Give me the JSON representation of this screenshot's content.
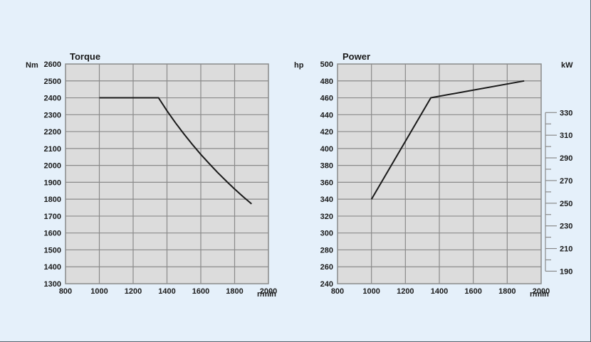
{
  "colors": {
    "background": "#e5f0fa",
    "plot_area": "#dcdcdc",
    "grid": "#8a8a8a",
    "line": "#1a1a1a",
    "text": "#1a1a1a"
  },
  "chart_data": [
    {
      "type": "line",
      "title": "Torque",
      "ylabel": "Nm",
      "xlabel": "r/min",
      "xlim": [
        800,
        2000
      ],
      "ylim": [
        1300,
        2600
      ],
      "xticks": [
        "800",
        "1000",
        "1200",
        "1400",
        "1600",
        "1800",
        "2000"
      ],
      "yticks": [
        "1300",
        "1400",
        "1500",
        "1600",
        "1700",
        "1800",
        "1900",
        "2000",
        "2100",
        "2200",
        "2300",
        "2400",
        "2500",
        "2600"
      ],
      "grid": true,
      "series": [
        {
          "x": [
            1000,
            1350,
            1400,
            1450,
            1500,
            1550,
            1600,
            1650,
            1700,
            1750,
            1800,
            1850,
            1900
          ],
          "y": [
            2400,
            2400,
            2323,
            2252,
            2186,
            2124,
            2065,
            2010,
            1957,
            1908,
            1860,
            1815,
            1772
          ]
        }
      ]
    },
    {
      "type": "line",
      "title": "Power",
      "ylabel": "hp",
      "xlabel": "r/min",
      "xlim": [
        800,
        2000
      ],
      "ylim": [
        240,
        500
      ],
      "xticks": [
        "800",
        "1000",
        "1200",
        "1400",
        "1600",
        "1800",
        "2000"
      ],
      "yticks": [
        "240",
        "260",
        "280",
        "300",
        "320",
        "340",
        "360",
        "380",
        "400",
        "420",
        "440",
        "460",
        "480",
        "500"
      ],
      "grid": true,
      "secondary_axis": {
        "label": "kW",
        "ticks": [
          "190",
          "210",
          "230",
          "250",
          "270",
          "290",
          "310",
          "330"
        ],
        "factor_hp_per_kw": 1.341
      },
      "series": [
        {
          "x": [
            1000,
            1350,
            1900
          ],
          "y": [
            340,
            460,
            480
          ]
        }
      ]
    }
  ]
}
